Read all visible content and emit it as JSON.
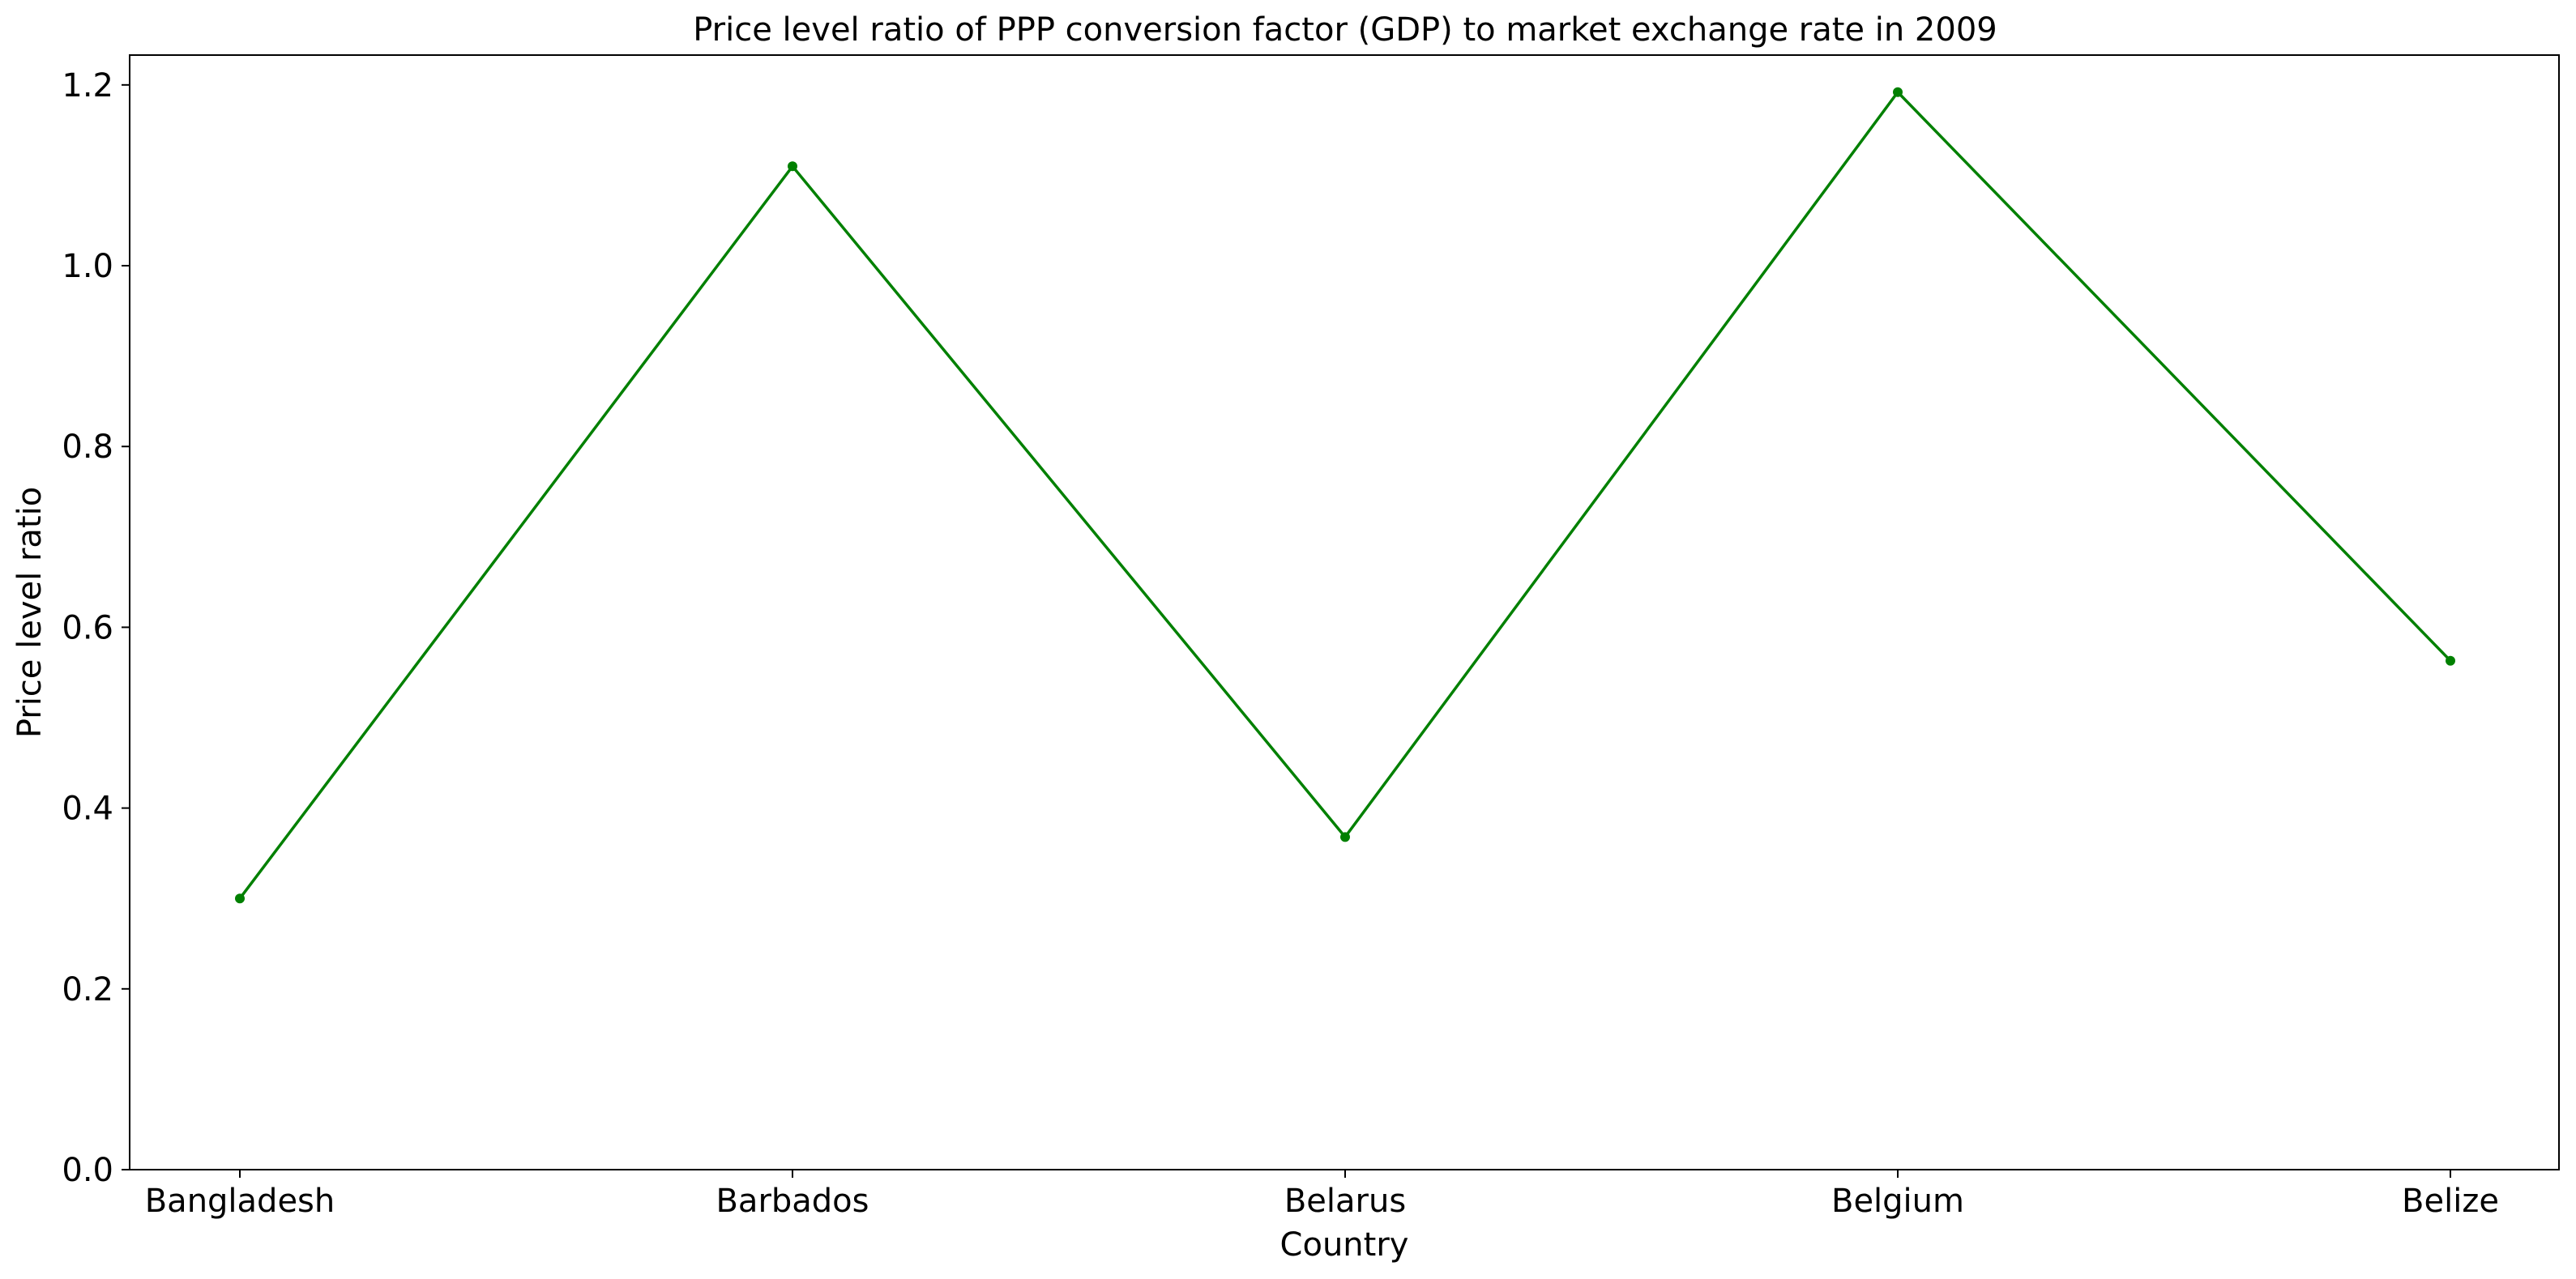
{
  "chart_data": {
    "type": "line",
    "title": "Price level ratio of PPP conversion factor (GDP) to market exchange rate in 2009",
    "xlabel": "Country",
    "ylabel": "Price level ratio",
    "categories": [
      "Bangladesh",
      "Barbados",
      "Belarus",
      "Belgium",
      "Belize"
    ],
    "series": [
      {
        "values": [
          0.3,
          1.11,
          0.368,
          1.192,
          0.563
        ]
      }
    ],
    "ylim": [
      0,
      1.233
    ],
    "yticks": [
      0.0,
      0.2,
      0.4,
      0.6,
      0.8,
      1.0,
      1.2
    ],
    "ytick_labels": [
      "0.0",
      "0.2",
      "0.4",
      "0.6",
      "0.8",
      "1.0",
      "1.2"
    ],
    "grid": false,
    "line_color": "#008000",
    "marker": "dot"
  }
}
